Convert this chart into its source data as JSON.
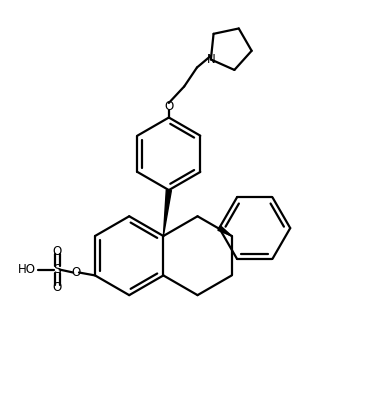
{
  "bg_color": "#ffffff",
  "line_color": "#000000",
  "lw": 1.6,
  "figsize": [
    3.68,
    3.96
  ],
  "dpi": 100,
  "xlim": [
    0,
    10
  ],
  "ylim": [
    0,
    10.76
  ]
}
